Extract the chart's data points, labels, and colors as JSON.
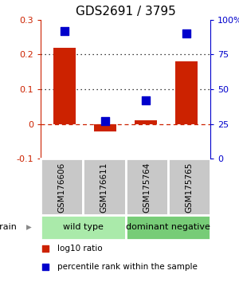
{
  "title": "GDS2691 / 3795",
  "samples": [
    "GSM176606",
    "GSM176611",
    "GSM175764",
    "GSM175765"
  ],
  "log10_ratio": [
    0.22,
    -0.02,
    0.01,
    0.18
  ],
  "percentile_rank": [
    92,
    27,
    42,
    90
  ],
  "bar_color": "#cc2200",
  "dot_color": "#0000cc",
  "ylim_left": [
    -0.1,
    0.3
  ],
  "ylim_right": [
    0,
    100
  ],
  "yticks_left": [
    -0.1,
    0.0,
    0.1,
    0.2,
    0.3
  ],
  "yticks_right": [
    0,
    25,
    50,
    75,
    100
  ],
  "ytick_labels_right": [
    "0",
    "25",
    "50",
    "75",
    "100%"
  ],
  "hlines_dotted": [
    0.1,
    0.2
  ],
  "hline_dashed": 0.0,
  "groups": [
    {
      "label": "wild type",
      "start": 0,
      "end": 2,
      "color": "#aaeaaa"
    },
    {
      "label": "dominant negative",
      "start": 2,
      "end": 4,
      "color": "#77cc77"
    }
  ],
  "strain_label": "strain",
  "legend_items": [
    {
      "color": "#cc2200",
      "label": "log10 ratio"
    },
    {
      "color": "#0000cc",
      "label": "percentile rank within the sample"
    }
  ],
  "sample_box_color": "#c8c8c8",
  "bar_width": 0.55,
  "dot_size": 44,
  "left_tick_color": "#cc2200",
  "right_tick_color": "#0000cc",
  "title_fontsize": 11,
  "tick_fontsize": 8,
  "sample_fontsize": 7.5,
  "group_fontsize": 8,
  "legend_fontsize": 7.5,
  "strain_fontsize": 8
}
